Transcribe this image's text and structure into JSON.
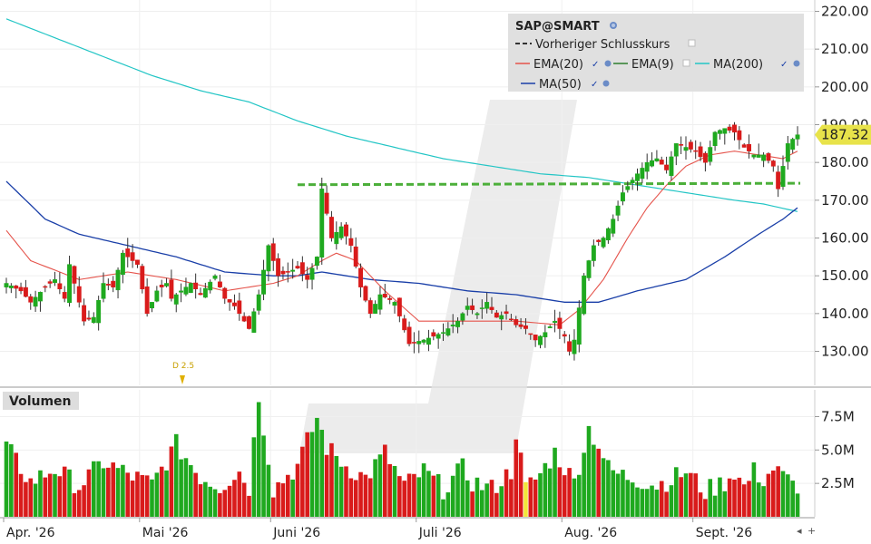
{
  "chart_data": {
    "type": "candlestick",
    "title": "SAP@SMART",
    "last_price": "187.32",
    "price_axis": {
      "ticks": [
        "220.00",
        "210.00",
        "200.00",
        "190.00",
        "180.00",
        "170.00",
        "160.00",
        "150.00",
        "140.00",
        "130.00"
      ],
      "ylim": [
        121,
        223
      ]
    },
    "volume_axis": {
      "label": "Volumen",
      "ticks": [
        "7.5M",
        "5.0M",
        "2.5M"
      ],
      "ylim": [
        0,
        9500000
      ]
    },
    "x_labels": [
      "Apr. '26",
      "Mai '26",
      "Juni '26",
      "Juli '26",
      "Aug. '26",
      "Sept. '26"
    ],
    "dividend_marker": "D 2.5",
    "previous_close": 174.3,
    "legend": {
      "title": "SAP@SMART",
      "items": [
        "Vorheriger Schlusskurs",
        "EMA(20)",
        "EMA(9)",
        "MA(200)",
        "MA(50)"
      ]
    },
    "colors": {
      "up": "#1fa91f",
      "down": "#d91b1b",
      "ema20": "#e5534b",
      "ema9": "#2e7d2e",
      "ma200": "#22c5c5",
      "ma50": "#1a3fa8",
      "prev_close": "#4caf3a"
    },
    "close_anchors": [
      [
        0,
        148
      ],
      [
        3,
        146
      ],
      [
        5,
        143
      ],
      [
        8,
        147
      ],
      [
        10,
        149
      ],
      [
        12,
        144
      ],
      [
        13,
        153
      ],
      [
        16,
        138
      ],
      [
        18,
        139
      ],
      [
        20,
        148
      ],
      [
        22,
        147
      ],
      [
        24,
        156
      ],
      [
        27,
        153
      ],
      [
        29,
        140
      ],
      [
        31,
        146
      ],
      [
        33,
        148
      ],
      [
        34,
        144
      ],
      [
        38,
        148
      ],
      [
        40,
        145
      ],
      [
        43,
        150
      ],
      [
        45,
        144
      ],
      [
        47,
        142
      ],
      [
        50,
        136
      ],
      [
        52,
        145
      ],
      [
        54,
        158
      ],
      [
        56,
        150
      ],
      [
        60,
        152
      ],
      [
        62,
        149
      ],
      [
        64,
        155
      ],
      [
        65,
        173
      ],
      [
        67,
        160
      ],
      [
        69,
        163
      ],
      [
        71,
        158
      ],
      [
        73,
        147
      ],
      [
        75,
        140
      ],
      [
        77,
        145
      ],
      [
        80,
        143
      ],
      [
        83,
        132
      ],
      [
        86,
        133
      ],
      [
        88,
        134
      ],
      [
        90,
        135
      ],
      [
        93,
        138
      ],
      [
        95,
        142
      ],
      [
        97,
        140
      ],
      [
        99,
        143
      ],
      [
        101,
        139
      ],
      [
        103,
        140
      ],
      [
        105,
        137
      ],
      [
        107,
        136
      ],
      [
        109,
        133
      ],
      [
        111,
        135
      ],
      [
        113,
        138
      ],
      [
        115,
        134
      ],
      [
        116,
        130
      ],
      [
        117,
        133
      ],
      [
        119,
        150
      ],
      [
        121,
        158
      ],
      [
        123,
        160
      ],
      [
        125,
        165
      ],
      [
        127,
        172
      ],
      [
        130,
        177
      ],
      [
        132,
        180
      ],
      [
        134,
        181
      ],
      [
        136,
        178
      ],
      [
        138,
        185
      ],
      [
        140,
        184
      ],
      [
        142,
        183
      ],
      [
        144,
        180
      ],
      [
        146,
        188
      ],
      [
        148,
        189
      ],
      [
        150,
        188
      ],
      [
        152,
        184
      ],
      [
        154,
        182
      ],
      [
        156,
        182
      ],
      [
        158,
        179
      ],
      [
        159,
        173
      ],
      [
        161,
        185
      ],
      [
        163,
        187.32
      ]
    ],
    "volume_anchors": [
      [
        0,
        5.2
      ],
      [
        5,
        2.6
      ],
      [
        10,
        3.6
      ],
      [
        15,
        2.3
      ],
      [
        20,
        4.1
      ],
      [
        25,
        3.2
      ],
      [
        30,
        2.4
      ],
      [
        35,
        5.4
      ],
      [
        40,
        3.0
      ],
      [
        44,
        2.3
      ],
      [
        48,
        3.4
      ],
      [
        50,
        2.2
      ],
      [
        52,
        9.1
      ],
      [
        55,
        2.1
      ],
      [
        60,
        3.8
      ],
      [
        64,
        7.4
      ],
      [
        66,
        5.2
      ],
      [
        70,
        3.8
      ],
      [
        74,
        2.9
      ],
      [
        78,
        4.8
      ],
      [
        82,
        2.3
      ],
      [
        86,
        3.4
      ],
      [
        90,
        2.1
      ],
      [
        94,
        3.6
      ],
      [
        96,
        2.6
      ],
      [
        100,
        2.1
      ],
      [
        104,
        3.4
      ],
      [
        105,
        6.4
      ],
      [
        107,
        2.1
      ],
      [
        110,
        3.2
      ],
      [
        113,
        4.8
      ],
      [
        117,
        2.6
      ],
      [
        120,
        6.6
      ],
      [
        122,
        5.4
      ],
      [
        124,
        3.6
      ],
      [
        126,
        3.2
      ],
      [
        130,
        2.8
      ],
      [
        134,
        2.4
      ],
      [
        137,
        2.8
      ],
      [
        140,
        3.4
      ],
      [
        144,
        1.9
      ],
      [
        148,
        2.6
      ],
      [
        150,
        3.4
      ],
      [
        152,
        2.2
      ],
      [
        154,
        3.4
      ],
      [
        156,
        2.8
      ],
      [
        158,
        3.6
      ],
      [
        160,
        3.0
      ],
      [
        162,
        2.4
      ]
    ],
    "ema20_anchors": [
      [
        0,
        162
      ],
      [
        5,
        154
      ],
      [
        15,
        149
      ],
      [
        25,
        151
      ],
      [
        35,
        149
      ],
      [
        45,
        146
      ],
      [
        55,
        148
      ],
      [
        60,
        150
      ],
      [
        65,
        154
      ],
      [
        68,
        156
      ],
      [
        72,
        154
      ],
      [
        78,
        146
      ],
      [
        85,
        138
      ],
      [
        95,
        138
      ],
      [
        105,
        138
      ],
      [
        114,
        137
      ],
      [
        118,
        141
      ],
      [
        123,
        149
      ],
      [
        128,
        160
      ],
      [
        132,
        168
      ],
      [
        136,
        174
      ],
      [
        140,
        179
      ],
      [
        145,
        182
      ],
      [
        150,
        183
      ],
      [
        155,
        182
      ],
      [
        160,
        181
      ],
      [
        163,
        183
      ]
    ],
    "ema9_anchors": [
      [
        0,
        150
      ],
      [
        10,
        148
      ],
      [
        20,
        147
      ],
      [
        30,
        145
      ],
      [
        40,
        148
      ],
      [
        50,
        146
      ],
      [
        60,
        150
      ],
      [
        66,
        157
      ],
      [
        70,
        156
      ],
      [
        76,
        143
      ],
      [
        84,
        135
      ],
      [
        95,
        139
      ],
      [
        104,
        138
      ],
      [
        112,
        136
      ],
      [
        118,
        145
      ],
      [
        124,
        158
      ],
      [
        130,
        174
      ],
      [
        136,
        182
      ],
      [
        142,
        184
      ],
      [
        150,
        187
      ],
      [
        156,
        183
      ],
      [
        163,
        185
      ]
    ],
    "ma200_anchors": [
      [
        0,
        218
      ],
      [
        10,
        213
      ],
      [
        20,
        208
      ],
      [
        30,
        203
      ],
      [
        40,
        199
      ],
      [
        50,
        196
      ],
      [
        60,
        191
      ],
      [
        70,
        187
      ],
      [
        80,
        184
      ],
      [
        90,
        181
      ],
      [
        100,
        179
      ],
      [
        110,
        177
      ],
      [
        120,
        176
      ],
      [
        130,
        174
      ],
      [
        140,
        172
      ],
      [
        150,
        170
      ],
      [
        156,
        169
      ],
      [
        163,
        167
      ]
    ],
    "ma50_anchors": [
      [
        0,
        175
      ],
      [
        8,
        165
      ],
      [
        15,
        161
      ],
      [
        25,
        158
      ],
      [
        35,
        155
      ],
      [
        45,
        151
      ],
      [
        55,
        150
      ],
      [
        60,
        150
      ],
      [
        65,
        151
      ],
      [
        75,
        149
      ],
      [
        85,
        148
      ],
      [
        95,
        146
      ],
      [
        105,
        145
      ],
      [
        115,
        143
      ],
      [
        122,
        143
      ],
      [
        130,
        146
      ],
      [
        140,
        149
      ],
      [
        148,
        155
      ],
      [
        155,
        161
      ],
      [
        160,
        165
      ],
      [
        163,
        168
      ]
    ]
  }
}
